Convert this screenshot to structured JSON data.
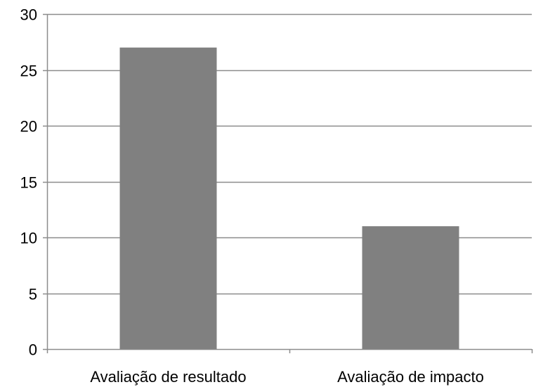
{
  "chart_data": {
    "type": "bar",
    "categories": [
      "Avaliação de resultado",
      "Avaliação de impacto"
    ],
    "values": [
      27,
      11
    ],
    "ylim": [
      0,
      30
    ],
    "yticks": [
      0,
      5,
      10,
      15,
      20,
      25,
      30
    ],
    "grid": true,
    "legend": "none",
    "colors": {
      "bar": "#808080",
      "grid": "#8c8c8c",
      "axis": "#8c8c8c",
      "text": "#000000"
    }
  }
}
